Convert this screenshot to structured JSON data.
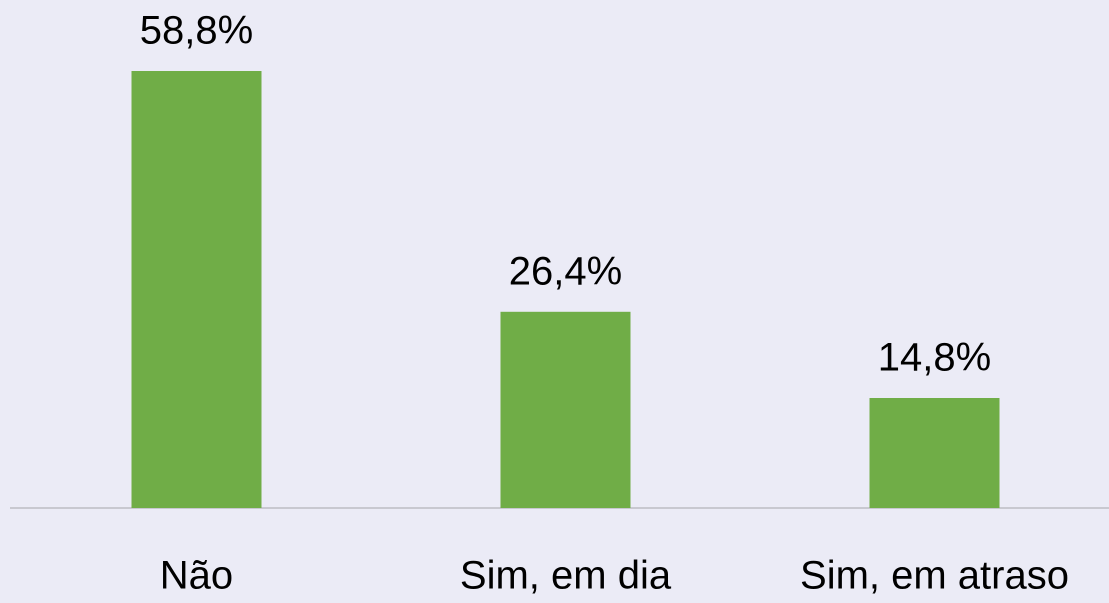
{
  "chart_data": {
    "type": "bar",
    "categories": [
      "Não",
      "Sim, em dia",
      "Sim, em atraso"
    ],
    "values": [
      58.8,
      26.4,
      14.8
    ],
    "value_labels": [
      "58,8%",
      "26,4%",
      "14,8%"
    ],
    "color": "#70ad47"
  }
}
